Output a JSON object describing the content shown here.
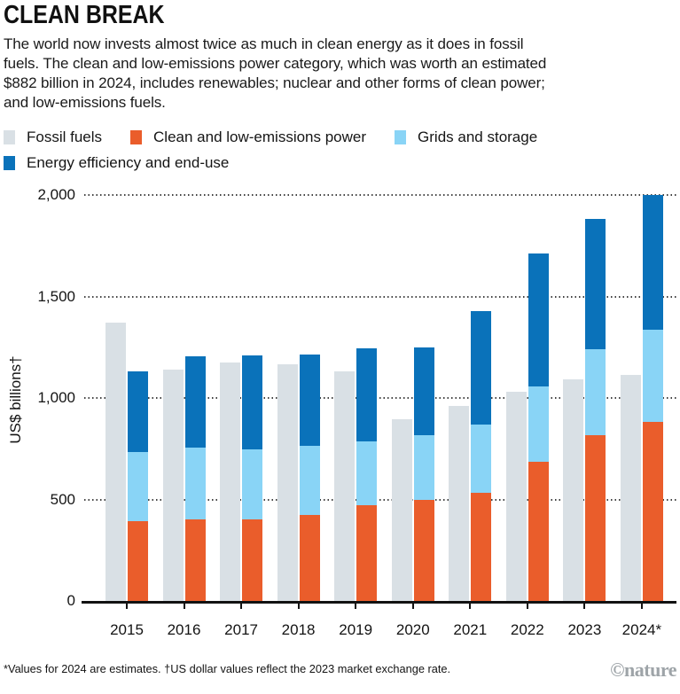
{
  "header": {
    "title": "CLEAN BREAK",
    "description": "The world now invests almost twice as much in clean energy as it does in fossil\nfuels. The clean and low-emissions power category, which was worth an estimated\n$882 billion in 2024, includes renewables; nuclear and other forms of clean power;\nand low-emissions fuels."
  },
  "chart_data": {
    "type": "bar",
    "title": "CLEAN BREAK",
    "categories": [
      "2015",
      "2016",
      "2017",
      "2018",
      "2019",
      "2020",
      "2021",
      "2022",
      "2023",
      "2024*"
    ],
    "series": [
      {
        "key": "fossil-fuels",
        "name": "Fossil fuels",
        "color": "#D9E0E5",
        "bar": 0,
        "values": [
          1370,
          1140,
          1175,
          1165,
          1130,
          895,
          960,
          1030,
          1090,
          1115
        ]
      },
      {
        "key": "clean-power",
        "name": "Clean and low-emissions power",
        "color": "#EA5D2B",
        "bar": 1,
        "values": [
          395,
          400,
          400,
          425,
          470,
          500,
          535,
          685,
          815,
          882
        ]
      },
      {
        "key": "grids-storage",
        "name": "Grids and storage",
        "color": "#89D4F6",
        "bar": 1,
        "values": [
          340,
          355,
          345,
          340,
          315,
          315,
          335,
          370,
          425,
          455
        ]
      },
      {
        "key": "energy-efficiency",
        "name": "Energy efficiency and end-use",
        "color": "#0A72BA",
        "bar": 1,
        "values": [
          395,
          450,
          465,
          450,
          460,
          435,
          560,
          655,
          640,
          663
        ]
      }
    ],
    "bar_groups": [
      [
        "Fossil fuels"
      ],
      [
        "Clean and low-emissions power",
        "Grids and storage",
        "Energy efficiency and end-use"
      ]
    ],
    "xlabel": "",
    "ylabel": "US$ billions†",
    "ylim": [
      0,
      2052
    ],
    "yticks": [
      {
        "value": 0,
        "label": "0"
      },
      {
        "value": 500,
        "label": "500"
      },
      {
        "value": 1000,
        "label": "1,000"
      },
      {
        "value": 1500,
        "label": "1,500"
      },
      {
        "value": 2000,
        "label": "2,000"
      }
    ],
    "grid": "dotted-horizontal",
    "legend_position": "top"
  },
  "footer": {
    "note": "*Values for 2024 are estimates. †US dollar values reflect the 2023 market exchange rate.",
    "credit": "©nature"
  }
}
